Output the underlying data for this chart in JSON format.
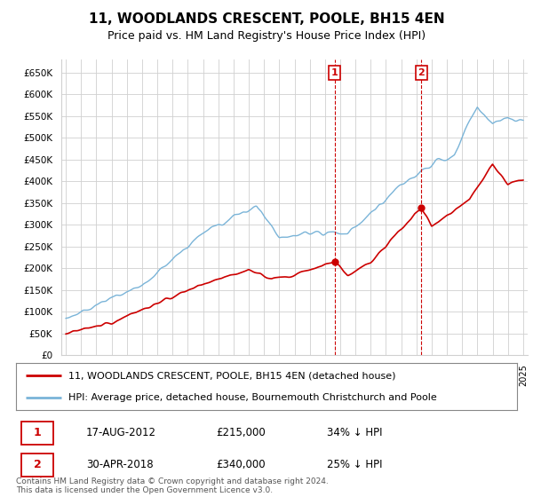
{
  "title": "11, WOODLANDS CRESCENT, POOLE, BH15 4EN",
  "subtitle": "Price paid vs. HM Land Registry's House Price Index (HPI)",
  "ylabel_ticks": [
    "£0",
    "£50K",
    "£100K",
    "£150K",
    "£200K",
    "£250K",
    "£300K",
    "£350K",
    "£400K",
    "£450K",
    "£500K",
    "£550K",
    "£600K",
    "£650K"
  ],
  "ytick_vals": [
    0,
    50000,
    100000,
    150000,
    200000,
    250000,
    300000,
    350000,
    400000,
    450000,
    500000,
    550000,
    600000,
    650000
  ],
  "legend_line1": "11, WOODLANDS CRESCENT, POOLE, BH15 4EN (detached house)",
  "legend_line2": "HPI: Average price, detached house, Bournemouth Christchurch and Poole",
  "transaction1_date": "17-AUG-2012",
  "transaction1_price": 215000,
  "transaction1_pct": "34% ↓ HPI",
  "transaction1_label": "1",
  "transaction2_date": "30-APR-2018",
  "transaction2_price": 340000,
  "transaction2_pct": "25% ↓ HPI",
  "transaction2_label": "2",
  "footer": "Contains HM Land Registry data © Crown copyright and database right 2024.\nThis data is licensed under the Open Government Licence v3.0.",
  "hpi_color": "#7ab4d8",
  "price_color": "#cc0000",
  "background_color": "#ffffff",
  "plot_bg_color": "#ffffff",
  "grid_color": "#d0d0d0",
  "annotation_box_color": "#cc0000"
}
